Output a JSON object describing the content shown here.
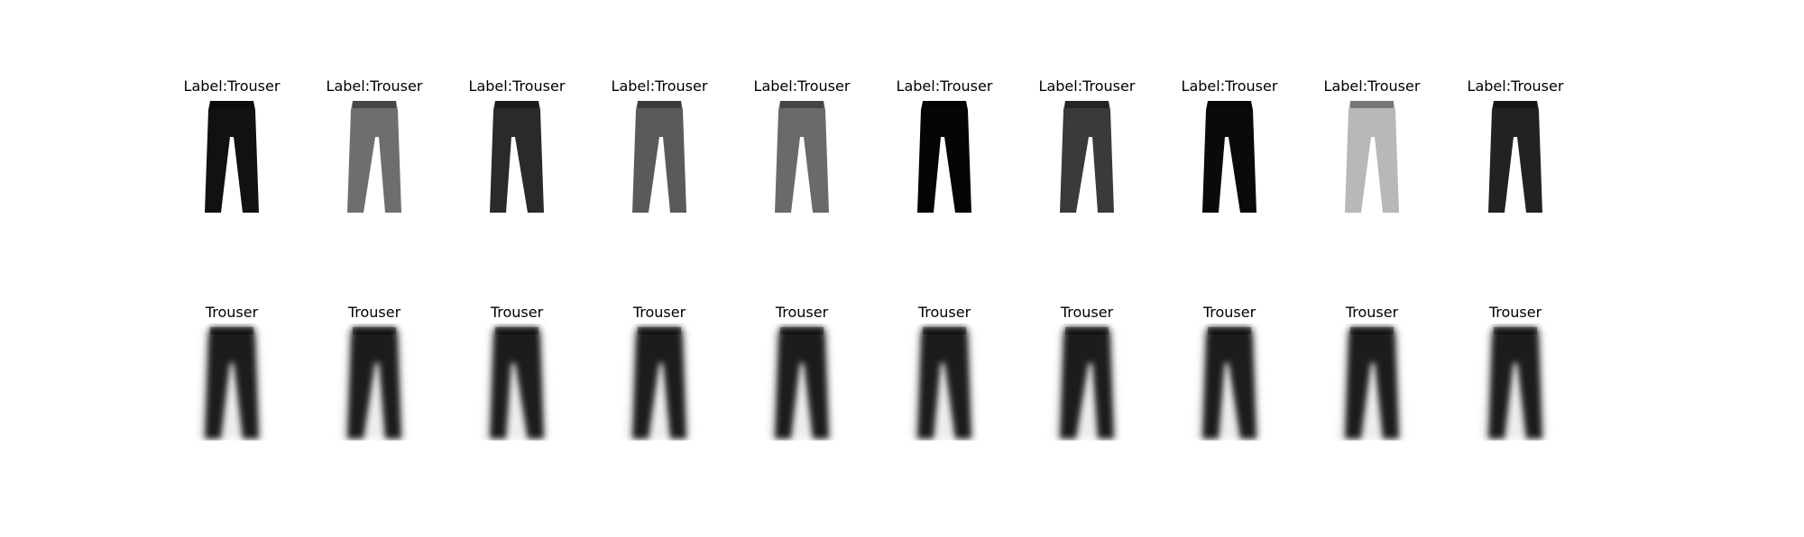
{
  "rows": [
    {
      "name": "input-row",
      "titles": [
        "Label:Trouser",
        "Label:Trouser",
        "Label:Trouser",
        "Label:Trouser",
        "Label:Trouser",
        "Label:Trouser",
        "Label:Trouser",
        "Label:Trouser",
        "Label:Trouser",
        "Label:Trouser"
      ]
    },
    {
      "name": "generated-row",
      "titles": [
        "Trouser",
        "Trouser",
        "Trouser",
        "Trouser",
        "Trouser",
        "Trouser",
        "Trouser",
        "Trouser",
        "Trouser",
        "Trouser"
      ]
    }
  ],
  "colors": {
    "input_tones": [
      "#111111",
      "#6e6e6e",
      "#2a2a2a",
      "#5a5a5a",
      "#6a6a6a",
      "#050505",
      "#3a3a3a",
      "#0a0a0a",
      "#b8b8b8",
      "#222222"
    ],
    "generated_tone": "#1a1a1a"
  }
}
